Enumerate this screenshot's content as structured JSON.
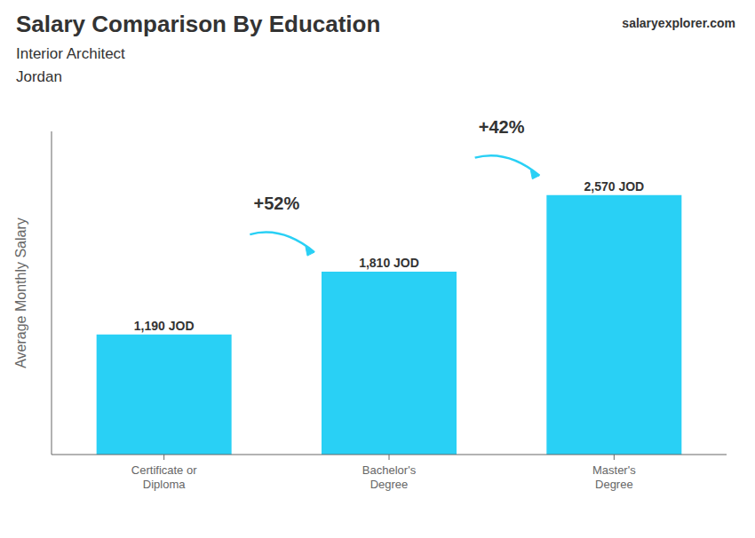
{
  "chart_data": {
    "type": "bar",
    "title": "Salary Comparison By Education",
    "subtitle": "Interior Architect",
    "annotations": [
      {
        "text": "Jordan"
      },
      {
        "text": "salaryexplorer.com"
      },
      {
        "text": "+52%",
        "from": "Certificate or\nDiploma",
        "to": "Bachelor's\nDegree"
      },
      {
        "text": "+42%",
        "from": "Bachelor's\nDegree",
        "to": "Master's\nDegree"
      }
    ],
    "categories": [
      "Certificate or\nDiploma",
      "Bachelor's\nDegree",
      "Master's\nDegree"
    ],
    "values": [
      1190,
      1810,
      2570
    ],
    "value_labels": [
      "1,190 JOD",
      "1,810 JOD",
      "2,570 JOD"
    ],
    "data_labels": true,
    "ylabel": "Average Monthly Salary",
    "ylim": [
      0,
      3200
    ],
    "tick_labels": "x",
    "grid": false,
    "color": "#29d0f5"
  }
}
